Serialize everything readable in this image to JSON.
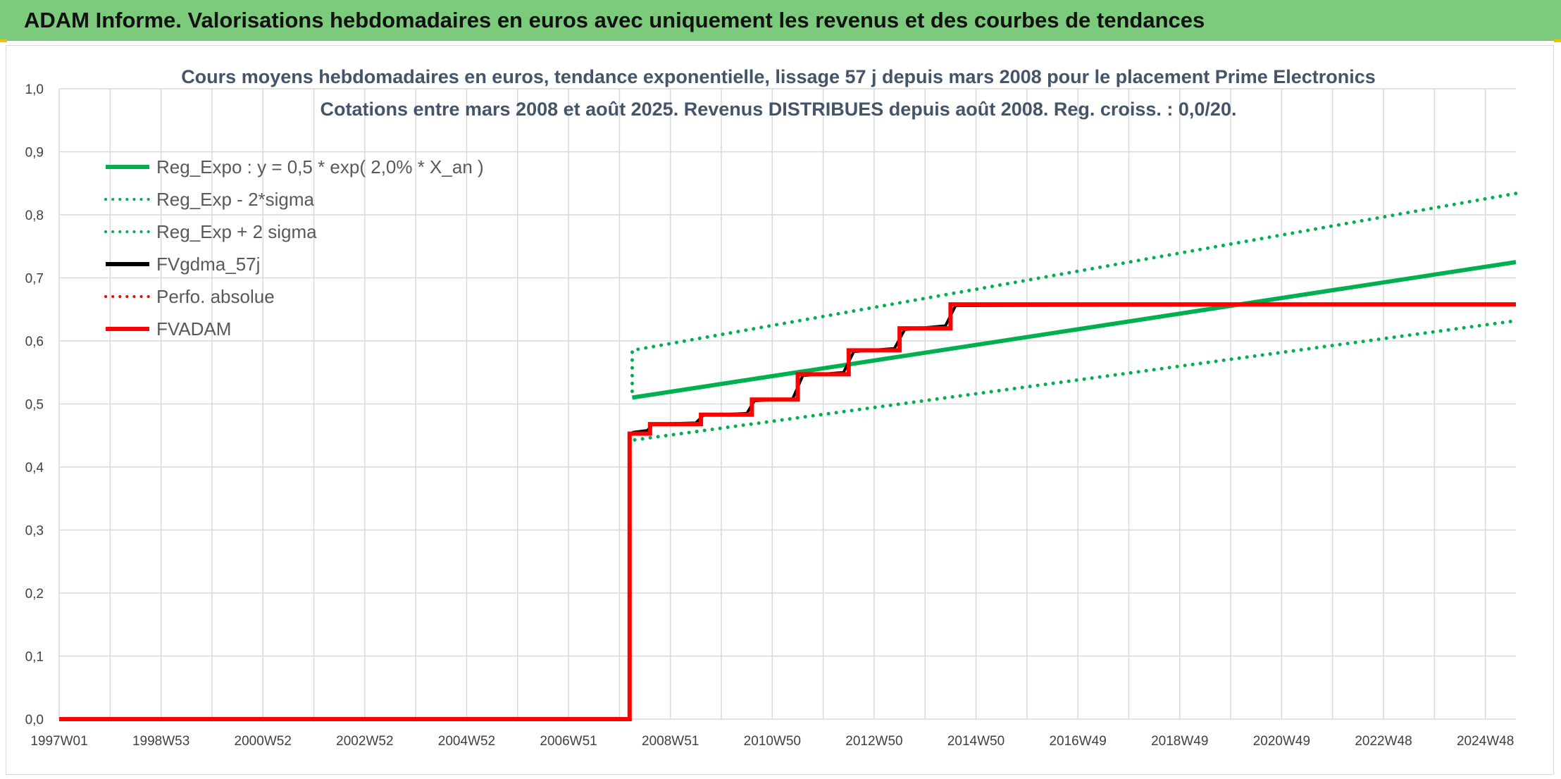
{
  "header": {
    "title": "ADAM Informe. Valorisations hebdomadaires en euros avec uniquement les revenus et des courbes de tendances"
  },
  "colors": {
    "banner": "#7ccb7c",
    "green": "#00b050",
    "black": "#000000",
    "red": "#ff0000",
    "grid": "#d9d9d9",
    "text": "#404040"
  },
  "chart_data": {
    "type": "line",
    "title": "Cours moyens hebdomadaires en euros, tendance exponentielle, lissage 57 j depuis mars 2008 pour le placement Prime Electronics",
    "subtitle": "Cotations entre mars 2008 et août 2025. Revenus DISTRIBUES depuis août 2008. Reg. croiss. : 0,0/20.",
    "xlabel": "",
    "ylabel": "",
    "x_range": [
      1997.0,
      2025.6
    ],
    "ylim": [
      0,
      1.0
    ],
    "y_ticks": [
      "0,0",
      "0,1",
      "0,2",
      "0,3",
      "0,4",
      "0,5",
      "0,6",
      "0,7",
      "0,8",
      "0,9",
      "1,0"
    ],
    "x_ticks": [
      {
        "label": "1997W01",
        "x": 1997.0
      },
      {
        "label": "1998W53",
        "x": 1999.0
      },
      {
        "label": "2000W52",
        "x": 2001.0
      },
      {
        "label": "2002W52",
        "x": 2003.0
      },
      {
        "label": "2004W52",
        "x": 2005.0
      },
      {
        "label": "2006W51",
        "x": 2007.0
      },
      {
        "label": "2008W51",
        "x": 2009.0
      },
      {
        "label": "2010W50",
        "x": 2011.0
      },
      {
        "label": "2012W50",
        "x": 2013.0
      },
      {
        "label": "2014W50",
        "x": 2015.0
      },
      {
        "label": "2016W49",
        "x": 2017.0
      },
      {
        "label": "2018W49",
        "x": 2019.0
      },
      {
        "label": "2020W49",
        "x": 2021.0
      },
      {
        "label": "2022W48",
        "x": 2023.0
      },
      {
        "label": "2024W48",
        "x": 2025.0
      }
    ],
    "grid": true,
    "legend_position": "top-left",
    "series": [
      {
        "name": "Reg_Expo : y = 0,5 * exp( 2,0% *  X_an )",
        "color": "#00b050",
        "style": "solid",
        "width": 6,
        "points": [
          [
            2008.25,
            0.51
          ],
          [
            2025.6,
            0.725
          ]
        ]
      },
      {
        "name": "Reg_Exp - 2*sigma",
        "color": "#00b050",
        "style": "dotted",
        "width": 5,
        "points": [
          [
            2008.3,
            0.443
          ],
          [
            2025.6,
            0.632
          ]
        ]
      },
      {
        "name": "Reg_Exp + 2 sigma",
        "color": "#00b050",
        "style": "dotted",
        "width": 5,
        "points": [
          [
            2008.25,
            0.52
          ],
          [
            2008.25,
            0.585
          ],
          [
            2025.6,
            0.834
          ]
        ]
      },
      {
        "name": "FVgdma_57j",
        "color": "#000000",
        "style": "solid",
        "width": 4,
        "points": [
          [
            2008.25,
            0.455
          ],
          [
            2008.55,
            0.458
          ],
          [
            2008.65,
            0.468
          ],
          [
            2009.5,
            0.47
          ],
          [
            2009.65,
            0.482
          ],
          [
            2010.5,
            0.485
          ],
          [
            2010.65,
            0.505
          ],
          [
            2011.4,
            0.508
          ],
          [
            2011.6,
            0.545
          ],
          [
            2012.4,
            0.55
          ],
          [
            2012.6,
            0.583
          ],
          [
            2013.4,
            0.588
          ],
          [
            2013.6,
            0.618
          ],
          [
            2014.4,
            0.624
          ],
          [
            2014.6,
            0.656
          ],
          [
            2025.6,
            0.658
          ]
        ]
      },
      {
        "name": "Perfo. absolue",
        "color": "#ff0000",
        "style": "dotted",
        "width": 4,
        "points": []
      },
      {
        "name": "FVADAM",
        "color": "#ff0000",
        "style": "solid",
        "width": 6,
        "points": [
          [
            1997.0,
            0.0
          ],
          [
            2008.2,
            0.0
          ],
          [
            2008.2,
            0.453
          ],
          [
            2008.6,
            0.453
          ],
          [
            2008.6,
            0.468
          ],
          [
            2009.6,
            0.468
          ],
          [
            2009.6,
            0.483
          ],
          [
            2010.6,
            0.483
          ],
          [
            2010.6,
            0.507
          ],
          [
            2011.5,
            0.507
          ],
          [
            2011.5,
            0.547
          ],
          [
            2012.5,
            0.547
          ],
          [
            2012.5,
            0.585
          ],
          [
            2013.5,
            0.585
          ],
          [
            2013.5,
            0.62
          ],
          [
            2014.5,
            0.62
          ],
          [
            2014.5,
            0.658
          ],
          [
            2025.6,
            0.658
          ]
        ]
      }
    ]
  }
}
